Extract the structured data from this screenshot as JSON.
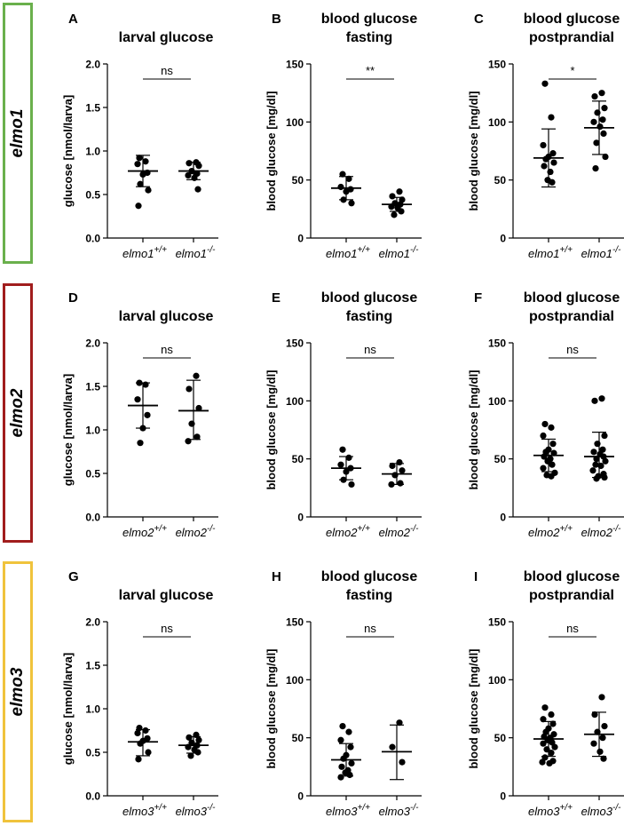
{
  "row_labels": [
    {
      "text": "elmo1",
      "color": "#6ab04c"
    },
    {
      "text": "elmo2",
      "color": "#a11d1d"
    },
    {
      "text": "elmo3",
      "color": "#f0c33c"
    }
  ],
  "chart_data": [
    {
      "panel": "A",
      "type": "scatter",
      "title": [
        "larval glucose"
      ],
      "ylabel": "glucose [nmol/larva]",
      "ylim": [
        0,
        2.0
      ],
      "yticks": [
        "0.0",
        "0.5",
        "1.0",
        "1.5",
        "2.0"
      ],
      "yticks_values": [
        0,
        0.5,
        1.0,
        1.5,
        2.0
      ],
      "groups": [
        {
          "base": "elmo1",
          "sup": "+/+",
          "mean": 0.77,
          "sd": [
            0.59,
            0.95
          ],
          "points": [
            0.92,
            0.88,
            0.85,
            0.75,
            0.73,
            0.62,
            0.55,
            0.37
          ]
        },
        {
          "base": "elmo1",
          "sup": "-/-",
          "mean": 0.77,
          "sd": [
            0.67,
            0.87
          ],
          "points": [
            0.87,
            0.86,
            0.83,
            0.77,
            0.74,
            0.72,
            0.69,
            0.56
          ]
        }
      ],
      "significance": "ns"
    },
    {
      "panel": "B",
      "type": "scatter",
      "title": [
        "blood glucose",
        "fasting"
      ],
      "ylabel": "blood glucose [mg/dl]",
      "ylim": [
        0,
        150
      ],
      "yticks": [
        "0",
        "50",
        "100",
        "150"
      ],
      "yticks_values": [
        0,
        50,
        100,
        150
      ],
      "groups": [
        {
          "base": "elmo1",
          "sup": "+/+",
          "mean": 43,
          "sd": [
            33,
            53
          ],
          "points": [
            55,
            51,
            44,
            42,
            40,
            33,
            30
          ]
        },
        {
          "base": "elmo1",
          "sup": "-/-",
          "mean": 29,
          "sd": [
            23,
            35
          ],
          "points": [
            40,
            36,
            33,
            30,
            29,
            27,
            26,
            23,
            20
          ]
        }
      ],
      "significance": "**"
    },
    {
      "panel": "C",
      "type": "scatter",
      "title": [
        "blood glucose",
        "postprandial"
      ],
      "ylabel": "blood glucose [mg/dl]",
      "ylim": [
        0,
        150
      ],
      "yticks": [
        "0",
        "50",
        "100",
        "150"
      ],
      "yticks_values": [
        0,
        50,
        100,
        150
      ],
      "groups": [
        {
          "base": "elmo1",
          "sup": "+/+",
          "mean": 69,
          "sd": [
            44,
            94
          ],
          "points": [
            133,
            104,
            80,
            73,
            70,
            68,
            65,
            62,
            57,
            50,
            48
          ]
        },
        {
          "base": "elmo1",
          "sup": "-/-",
          "mean": 95,
          "sd": [
            72,
            118
          ],
          "points": [
            125,
            122,
            112,
            108,
            102,
            100,
            96,
            90,
            82,
            70,
            60
          ]
        }
      ],
      "significance": "*"
    },
    {
      "panel": "D",
      "type": "scatter",
      "title": [
        "larval glucose"
      ],
      "ylabel": "glucose [nmol/larva]",
      "ylim": [
        0,
        2.0
      ],
      "yticks": [
        "0.0",
        "0.5",
        "1.0",
        "1.5",
        "2.0"
      ],
      "yticks_values": [
        0,
        0.5,
        1.0,
        1.5,
        2.0
      ],
      "groups": [
        {
          "base": "elmo2",
          "sup": "+/+",
          "mean": 1.28,
          "sd": [
            1.02,
            1.54
          ],
          "points": [
            1.54,
            1.52,
            1.35,
            1.17,
            1.02,
            0.85
          ]
        },
        {
          "base": "elmo2",
          "sup": "-/-",
          "mean": 1.22,
          "sd": [
            0.89,
            1.57
          ],
          "points": [
            1.62,
            1.47,
            1.25,
            1.07,
            0.92,
            0.87
          ]
        }
      ],
      "significance": "ns"
    },
    {
      "panel": "E",
      "type": "scatter",
      "title": [
        "blood glucose",
        "fasting"
      ],
      "ylabel": "blood glucose [mg/dl]",
      "ylim": [
        0,
        150
      ],
      "yticks": [
        "0",
        "50",
        "100",
        "150"
      ],
      "yticks_values": [
        0,
        50,
        100,
        150
      ],
      "groups": [
        {
          "base": "elmo2",
          "sup": "+/+",
          "mean": 42,
          "sd": [
            32,
            52
          ],
          "points": [
            58,
            51,
            45,
            42,
            39,
            32,
            28
          ]
        },
        {
          "base": "elmo2",
          "sup": "-/-",
          "mean": 37,
          "sd": [
            28,
            46
          ],
          "points": [
            47,
            44,
            40,
            36,
            29,
            28
          ]
        }
      ],
      "significance": "ns"
    },
    {
      "panel": "F",
      "type": "scatter",
      "title": [
        "blood glucose",
        "postprandial"
      ],
      "ylabel": "blood glucose [mg/dl]",
      "ylim": [
        0,
        150
      ],
      "yticks": [
        "0",
        "50",
        "100",
        "150"
      ],
      "yticks_values": [
        0,
        50,
        100,
        150
      ],
      "groups": [
        {
          "base": "elmo2",
          "sup": "+/+",
          "mean": 53,
          "sd": [
            39,
            67
          ],
          "points": [
            80,
            77,
            70,
            63,
            58,
            56,
            55,
            52,
            50,
            48,
            45,
            42,
            38,
            36,
            35
          ]
        },
        {
          "base": "elmo2",
          "sup": "-/-",
          "mean": 52,
          "sd": [
            34,
            73
          ],
          "points": [
            102,
            100,
            70,
            63,
            58,
            56,
            54,
            52,
            50,
            48,
            45,
            44,
            40,
            37,
            35,
            34,
            33
          ]
        }
      ],
      "significance": "ns"
    },
    {
      "panel": "G",
      "type": "scatter",
      "title": [
        "larval glucose"
      ],
      "ylabel": "glucose [nmol/larva]",
      "ylim": [
        0,
        2.0
      ],
      "yticks": [
        "0.0",
        "0.5",
        "1.0",
        "1.5",
        "2.0"
      ],
      "yticks_values": [
        0,
        0.5,
        1.0,
        1.5,
        2.0
      ],
      "groups": [
        {
          "base": "elmo3",
          "sup": "+/+",
          "mean": 0.62,
          "sd": [
            0.46,
            0.76
          ],
          "points": [
            0.78,
            0.75,
            0.72,
            0.66,
            0.63,
            0.6,
            0.5,
            0.42
          ]
        },
        {
          "base": "elmo3",
          "sup": "-/-",
          "mean": 0.58,
          "sd": [
            0.49,
            0.68
          ],
          "points": [
            0.7,
            0.67,
            0.64,
            0.61,
            0.58,
            0.56,
            0.53,
            0.5,
            0.46
          ]
        }
      ],
      "significance": "ns"
    },
    {
      "panel": "H",
      "type": "scatter",
      "title": [
        "blood glucose",
        "fasting"
      ],
      "ylabel": "blood glucose [mg/dl]",
      "ylim": [
        0,
        150
      ],
      "yticks": [
        "0",
        "50",
        "100",
        "150"
      ],
      "yticks_values": [
        0,
        50,
        100,
        150
      ],
      "groups": [
        {
          "base": "elmo3",
          "sup": "+/+",
          "mean": 31,
          "sd": [
            17,
            45
          ],
          "points": [
            60,
            55,
            48,
            42,
            35,
            32,
            28,
            25,
            22,
            20,
            18,
            16
          ]
        },
        {
          "base": "elmo3",
          "sup": "-/-",
          "mean": 38,
          "sd": [
            14,
            61
          ],
          "points": [
            63,
            42,
            29
          ]
        }
      ],
      "significance": "ns"
    },
    {
      "panel": "I",
      "type": "scatter",
      "title": [
        "blood glucose",
        "postprandial"
      ],
      "ylabel": "blood glucose [mg/dl]",
      "ylim": [
        0,
        150
      ],
      "yticks": [
        "0",
        "50",
        "100",
        "150"
      ],
      "yticks_values": [
        0,
        50,
        100,
        150
      ],
      "groups": [
        {
          "base": "elmo3",
          "sup": "+/+",
          "mean": 49,
          "sd": [
            34,
            64
          ],
          "points": [
            76,
            70,
            66,
            62,
            58,
            55,
            53,
            51,
            50,
            48,
            46,
            45,
            42,
            40,
            37,
            33,
            30,
            29,
            28
          ]
        },
        {
          "base": "elmo3",
          "sup": "-/-",
          "mean": 53,
          "sd": [
            34,
            72
          ],
          "points": [
            85,
            70,
            60,
            55,
            50,
            45,
            38,
            32
          ]
        }
      ],
      "significance": "ns"
    }
  ]
}
